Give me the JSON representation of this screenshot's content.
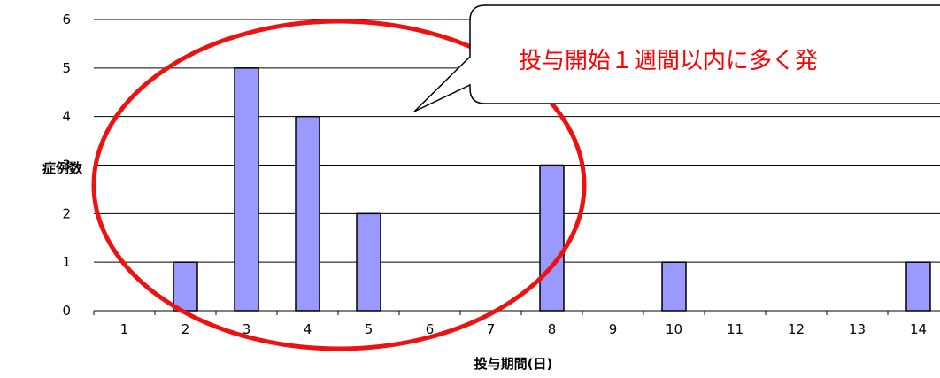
{
  "chart_data": {
    "type": "bar",
    "categories": [
      "1",
      "2",
      "3",
      "4",
      "5",
      "6",
      "7",
      "8",
      "9",
      "10",
      "11",
      "12",
      "13",
      "14"
    ],
    "values": [
      0,
      1,
      5,
      4,
      2,
      0,
      0,
      3,
      0,
      1,
      0,
      0,
      0,
      1
    ],
    "xlabel": "投与期間(日)",
    "ylabel": "症例数",
    "ylim": [
      0,
      6
    ],
    "yticks": [
      0,
      1,
      2,
      3,
      4,
      5,
      6
    ],
    "grid": "horizontal",
    "bar_color": "#9999ff",
    "annotation": "投与開始１週間以内に多く発"
  },
  "colors": {
    "highlight_ellipse": "#ee1111",
    "bar_fill": "#9999ff",
    "callout_text": "#ff0000"
  }
}
